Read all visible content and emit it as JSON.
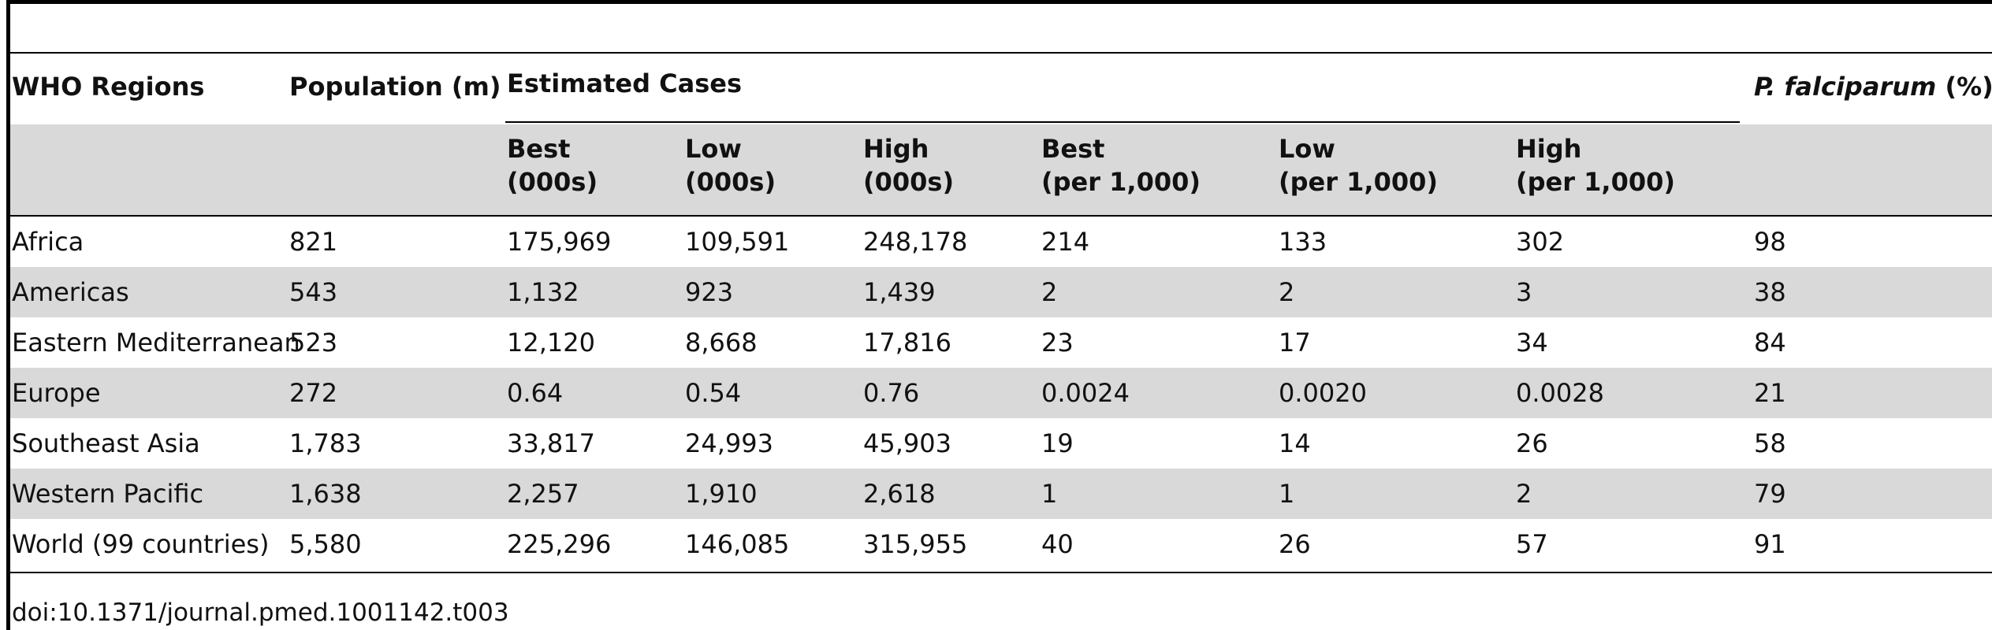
{
  "table": {
    "headers": {
      "region": "WHO Regions",
      "population": "Population (m)",
      "estimated_cases": "Estimated Cases",
      "pf_italic": "P. falciparum",
      "pf_suffix": " (%)"
    },
    "subheaders": [
      {
        "line1": "Best",
        "line2": "(000s)"
      },
      {
        "line1": "Low",
        "line2": "(000s)"
      },
      {
        "line1": "High",
        "line2": "(000s)"
      },
      {
        "line1": "Best",
        "line2": "(per 1,000)"
      },
      {
        "line1": "Low",
        "line2": "(per 1,000)"
      },
      {
        "line1": "High",
        "line2": "(per 1,000)"
      }
    ],
    "rows": [
      [
        "Africa",
        "821",
        "175,969",
        "109,591",
        "248,178",
        "214",
        "133",
        "302",
        "98"
      ],
      [
        "Americas",
        "543",
        "1,132",
        "923",
        "1,439",
        "2",
        "2",
        "3",
        "38"
      ],
      [
        "Eastern Mediterranean",
        "523",
        "12,120",
        "8,668",
        "17,816",
        "23",
        "17",
        "34",
        "84"
      ],
      [
        "Europe",
        "272",
        "0.64",
        "0.54",
        "0.76",
        "0.0024",
        "0.0020",
        "0.0028",
        "21"
      ],
      [
        "Southeast Asia",
        "1,783",
        "33,817",
        "24,993",
        "45,903",
        "19",
        "14",
        "26",
        "58"
      ],
      [
        "Western Pacific",
        "1,638",
        "2,257",
        "1,910",
        "2,618",
        "1",
        "1",
        "2",
        "79"
      ],
      [
        "World (99 countries)",
        "5,580",
        "225,296",
        "146,085",
        "315,955",
        "40",
        "26",
        "57",
        "91"
      ]
    ]
  },
  "footnote": "doi:10.1371/journal.pmed.1001142.t003",
  "colors": {
    "shade": "#d9d9d9",
    "rule": "#000000",
    "text": "#111111"
  }
}
